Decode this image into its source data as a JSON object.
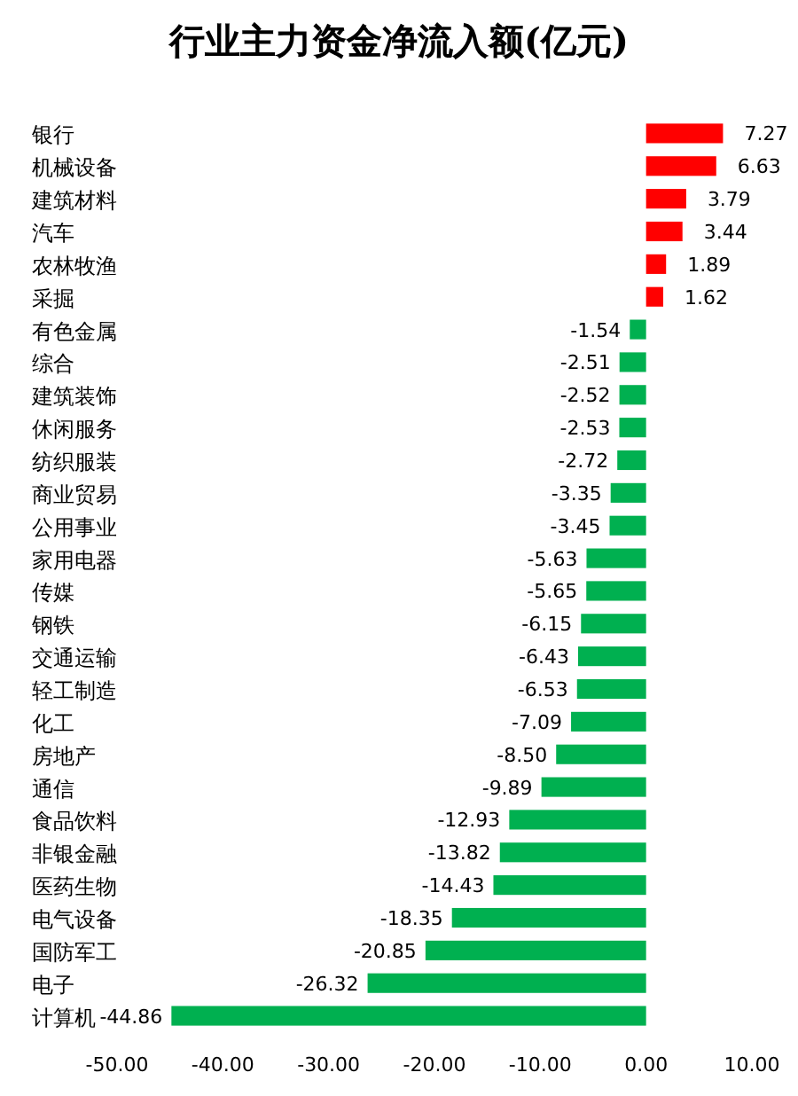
{
  "chart_data": {
    "type": "bar",
    "orientation": "horizontal",
    "title": "行业主力资金净流入额(亿元)",
    "categories": [
      "银行",
      "机械设备",
      "建筑材料",
      "汽车",
      "农林牧渔",
      "采掘",
      "有色金属",
      "综合",
      "建筑装饰",
      "休闲服务",
      "纺织服装",
      "商业贸易",
      "公用事业",
      "家用电器",
      "传媒",
      "钢铁",
      "交通运输",
      "轻工制造",
      "化工",
      "房地产",
      "通信",
      "食品饮料",
      "非银金融",
      "医药生物",
      "电气设备",
      "国防军工",
      "电子",
      "计算机"
    ],
    "values": [
      7.27,
      6.63,
      3.79,
      3.44,
      1.89,
      1.62,
      -1.54,
      -2.51,
      -2.52,
      -2.53,
      -2.72,
      -3.35,
      -3.45,
      -5.63,
      -5.65,
      -6.15,
      -6.43,
      -6.53,
      -7.09,
      -8.5,
      -9.89,
      -12.93,
      -13.82,
      -14.43,
      -18.35,
      -20.85,
      -26.32,
      -44.86
    ],
    "value_labels": [
      "7.27",
      "6.63",
      "3.79",
      "3.44",
      "1.89",
      "1.62",
      "-1.54",
      "-2.51",
      "-2.52",
      "-2.53",
      "-2.72",
      "-3.35",
      "-3.45",
      "-5.63",
      "-5.65",
      "-6.15",
      "-6.43",
      "-6.53",
      "-7.09",
      "-8.50",
      "-9.89",
      "-12.93",
      "-13.82",
      "-14.43",
      "-18.35",
      "-20.85",
      "-26.32",
      "-44.86"
    ],
    "colors": [
      "#ff0000",
      "#ff0000",
      "#ff0000",
      "#ff0000",
      "#ff0000",
      "#ff0000",
      "#00b050",
      "#00b050",
      "#00b050",
      "#00b050",
      "#00b050",
      "#00b050",
      "#00b050",
      "#00b050",
      "#00b050",
      "#00b050",
      "#00b050",
      "#00b050",
      "#00b050",
      "#00b050",
      "#00b050",
      "#00b050",
      "#00b050",
      "#00b050",
      "#00b050",
      "#00b050",
      "#00b050",
      "#00b050"
    ],
    "xlim": [
      -50,
      10
    ],
    "xticks": [
      {
        "value": -50,
        "label": "-50.00"
      },
      {
        "value": -40,
        "label": "-40.00"
      },
      {
        "value": -30,
        "label": "-30.00"
      },
      {
        "value": -20,
        "label": "-20.00"
      },
      {
        "value": -10,
        "label": "-10.00"
      },
      {
        "value": 0,
        "label": "0.00"
      },
      {
        "value": 10,
        "label": "10.00"
      }
    ],
    "grid": false
  }
}
